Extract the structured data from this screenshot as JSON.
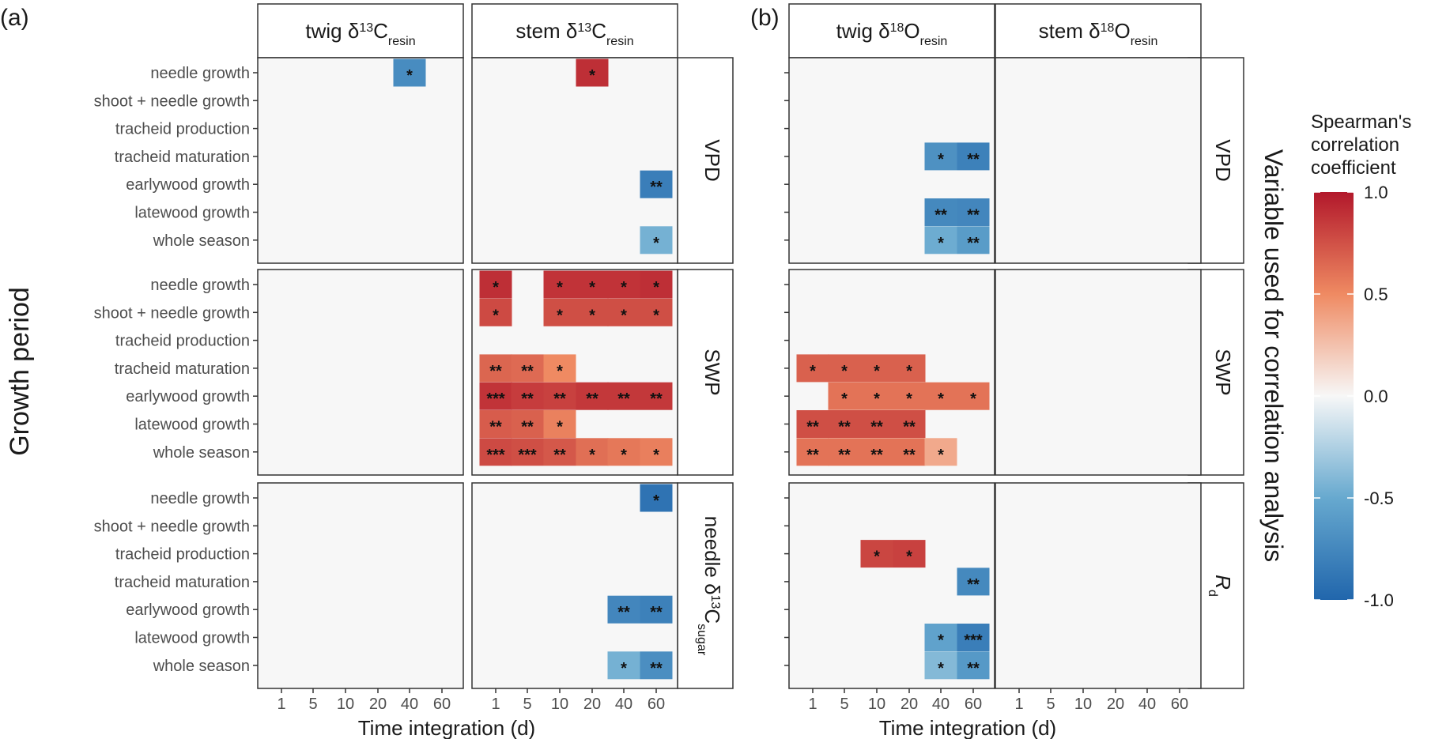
{
  "panel_labels": [
    "(a)",
    "(b)"
  ],
  "strips": {
    "col": [
      {
        "base": "twig δ",
        "sup": "13",
        "main": "C",
        "sub": "resin"
      },
      {
        "base": "stem δ",
        "sup": "13",
        "main": "C",
        "sub": "resin"
      },
      {
        "base": "twig δ",
        "sup": "18",
        "main": "O",
        "sub": "resin"
      },
      {
        "base": "stem δ",
        "sup": "18",
        "main": "O",
        "sub": "resin"
      }
    ],
    "row_a": [
      {
        "base": "VPD"
      },
      {
        "base": "SWP"
      },
      {
        "base": "needle δ",
        "sup": "13",
        "main": "C",
        "sub": "sugar"
      }
    ],
    "row_b": [
      {
        "base": "VPD"
      },
      {
        "base": "SWP"
      },
      {
        "base": "R",
        "sub": "d",
        "italic": true
      }
    ]
  },
  "right_title": "Variable used for correlation analysis",
  "legend": {
    "title": [
      "Spearman's",
      "correlation",
      "coefficient"
    ],
    "ticks": [
      "1.0",
      "0.5",
      "0.0",
      "-0.5",
      "-1.0"
    ],
    "colors": [
      "#b2182b",
      "#ef8a62",
      "#f7f7f7",
      "#67a9cf",
      "#2166ac"
    ]
  },
  "chart_data": {
    "type": "heatmap",
    "ylabel": "Growth period",
    "xlabel": "Time integration (d)",
    "x_categories": [
      "1",
      "5",
      "10",
      "20",
      "40",
      "60"
    ],
    "y_categories": [
      "needle growth",
      "shoot + needle growth",
      "tracheid production",
      "tracheid maturation",
      "earlywood growth",
      "latewood growth",
      "whole season"
    ],
    "value_range": [
      -1.0,
      1.0
    ],
    "panels": [
      {
        "panel": "(a)",
        "column": "twig δ13Cresin",
        "row": "VPD",
        "cells": [
          {
            "y": "needle growth",
            "x": "40",
            "value": -0.72,
            "sig": "*"
          }
        ]
      },
      {
        "panel": "(a)",
        "column": "stem δ13Cresin",
        "row": "VPD",
        "cells": [
          {
            "y": "needle growth",
            "x": "20",
            "value": 0.9,
            "sig": "*"
          },
          {
            "y": "earlywood growth",
            "x": "60",
            "value": -0.82,
            "sig": "**"
          },
          {
            "y": "whole season",
            "x": "60",
            "value": -0.45,
            "sig": "*"
          }
        ]
      },
      {
        "panel": "(a)",
        "column": "twig δ13Cresin",
        "row": "SWP",
        "cells": []
      },
      {
        "panel": "(a)",
        "column": "stem δ13Cresin",
        "row": "SWP",
        "cells": [
          {
            "y": "needle growth",
            "x": "1",
            "value": 0.9,
            "sig": "*"
          },
          {
            "y": "needle growth",
            "x": "10",
            "value": 0.88,
            "sig": "*"
          },
          {
            "y": "needle growth",
            "x": "20",
            "value": 0.88,
            "sig": "*"
          },
          {
            "y": "needle growth",
            "x": "40",
            "value": 0.88,
            "sig": "*"
          },
          {
            "y": "needle growth",
            "x": "60",
            "value": 0.9,
            "sig": "*"
          },
          {
            "y": "shoot + needle growth",
            "x": "1",
            "value": 0.78,
            "sig": "*"
          },
          {
            "y": "shoot + needle growth",
            "x": "10",
            "value": 0.76,
            "sig": "*"
          },
          {
            "y": "shoot + needle growth",
            "x": "20",
            "value": 0.76,
            "sig": "*"
          },
          {
            "y": "shoot + needle growth",
            "x": "40",
            "value": 0.76,
            "sig": "*"
          },
          {
            "y": "shoot + needle growth",
            "x": "60",
            "value": 0.76,
            "sig": "*"
          },
          {
            "y": "tracheid maturation",
            "x": "1",
            "value": 0.66,
            "sig": "**"
          },
          {
            "y": "tracheid maturation",
            "x": "5",
            "value": 0.64,
            "sig": "**"
          },
          {
            "y": "tracheid maturation",
            "x": "10",
            "value": 0.5,
            "sig": "*"
          },
          {
            "y": "earlywood growth",
            "x": "1",
            "value": 0.88,
            "sig": "***"
          },
          {
            "y": "earlywood growth",
            "x": "5",
            "value": 0.84,
            "sig": "**"
          },
          {
            "y": "earlywood growth",
            "x": "10",
            "value": 0.82,
            "sig": "**"
          },
          {
            "y": "earlywood growth",
            "x": "20",
            "value": 0.86,
            "sig": "**"
          },
          {
            "y": "earlywood growth",
            "x": "40",
            "value": 0.86,
            "sig": "**"
          },
          {
            "y": "earlywood growth",
            "x": "60",
            "value": 0.86,
            "sig": "**"
          },
          {
            "y": "latewood growth",
            "x": "1",
            "value": 0.7,
            "sig": "**"
          },
          {
            "y": "latewood growth",
            "x": "5",
            "value": 0.68,
            "sig": "**"
          },
          {
            "y": "latewood growth",
            "x": "10",
            "value": 0.54,
            "sig": "*"
          },
          {
            "y": "whole season",
            "x": "1",
            "value": 0.78,
            "sig": "***"
          },
          {
            "y": "whole season",
            "x": "5",
            "value": 0.76,
            "sig": "***"
          },
          {
            "y": "whole season",
            "x": "10",
            "value": 0.72,
            "sig": "**"
          },
          {
            "y": "whole season",
            "x": "20",
            "value": 0.62,
            "sig": "*"
          },
          {
            "y": "whole season",
            "x": "40",
            "value": 0.58,
            "sig": "*"
          },
          {
            "y": "whole season",
            "x": "60",
            "value": 0.55,
            "sig": "*"
          }
        ]
      },
      {
        "panel": "(a)",
        "column": "twig δ13Cresin",
        "row": "needle δ13Csugar",
        "cells": []
      },
      {
        "panel": "(a)",
        "column": "stem δ13Cresin",
        "row": "needle δ13Csugar",
        "cells": [
          {
            "y": "needle growth",
            "x": "60",
            "value": -0.9,
            "sig": "*"
          },
          {
            "y": "earlywood growth",
            "x": "40",
            "value": -0.76,
            "sig": "**"
          },
          {
            "y": "earlywood growth",
            "x": "60",
            "value": -0.8,
            "sig": "**"
          },
          {
            "y": "whole season",
            "x": "40",
            "value": -0.45,
            "sig": "*"
          },
          {
            "y": "whole season",
            "x": "60",
            "value": -0.7,
            "sig": "**"
          }
        ]
      },
      {
        "panel": "(b)",
        "column": "twig δ18Oresin",
        "row": "VPD",
        "cells": [
          {
            "y": "tracheid maturation",
            "x": "40",
            "value": -0.68,
            "sig": "*"
          },
          {
            "y": "tracheid maturation",
            "x": "60",
            "value": -0.8,
            "sig": "**"
          },
          {
            "y": "latewood growth",
            "x": "40",
            "value": -0.74,
            "sig": "**"
          },
          {
            "y": "latewood growth",
            "x": "60",
            "value": -0.76,
            "sig": "**"
          },
          {
            "y": "whole season",
            "x": "40",
            "value": -0.48,
            "sig": "*"
          },
          {
            "y": "whole season",
            "x": "60",
            "value": -0.6,
            "sig": "**"
          }
        ]
      },
      {
        "panel": "(b)",
        "column": "stem δ18Oresin",
        "row": "VPD",
        "cells": []
      },
      {
        "panel": "(b)",
        "column": "twig δ18Oresin",
        "row": "SWP",
        "cells": [
          {
            "y": "tracheid maturation",
            "x": "1",
            "value": 0.68,
            "sig": "*"
          },
          {
            "y": "tracheid maturation",
            "x": "5",
            "value": 0.68,
            "sig": "*"
          },
          {
            "y": "tracheid maturation",
            "x": "10",
            "value": 0.68,
            "sig": "*"
          },
          {
            "y": "tracheid maturation",
            "x": "20",
            "value": 0.68,
            "sig": "*"
          },
          {
            "y": "earlywood growth",
            "x": "5",
            "value": 0.6,
            "sig": "*"
          },
          {
            "y": "earlywood growth",
            "x": "10",
            "value": 0.6,
            "sig": "*"
          },
          {
            "y": "earlywood growth",
            "x": "20",
            "value": 0.6,
            "sig": "*"
          },
          {
            "y": "earlywood growth",
            "x": "40",
            "value": 0.6,
            "sig": "*"
          },
          {
            "y": "earlywood growth",
            "x": "60",
            "value": 0.6,
            "sig": "*"
          },
          {
            "y": "latewood growth",
            "x": "1",
            "value": 0.76,
            "sig": "**"
          },
          {
            "y": "latewood growth",
            "x": "5",
            "value": 0.76,
            "sig": "**"
          },
          {
            "y": "latewood growth",
            "x": "10",
            "value": 0.76,
            "sig": "**"
          },
          {
            "y": "latewood growth",
            "x": "20",
            "value": 0.76,
            "sig": "**"
          },
          {
            "y": "whole season",
            "x": "1",
            "value": 0.6,
            "sig": "**"
          },
          {
            "y": "whole season",
            "x": "5",
            "value": 0.6,
            "sig": "**"
          },
          {
            "y": "whole season",
            "x": "10",
            "value": 0.6,
            "sig": "**"
          },
          {
            "y": "whole season",
            "x": "20",
            "value": 0.6,
            "sig": "**"
          },
          {
            "y": "whole season",
            "x": "40",
            "value": 0.36,
            "sig": "*"
          }
        ]
      },
      {
        "panel": "(b)",
        "column": "stem δ18Oresin",
        "row": "SWP",
        "cells": []
      },
      {
        "panel": "(b)",
        "column": "twig δ18Oresin",
        "row": "Rd",
        "cells": [
          {
            "y": "tracheid production",
            "x": "10",
            "value": 0.8,
            "sig": "*"
          },
          {
            "y": "tracheid production",
            "x": "20",
            "value": 0.82,
            "sig": "*"
          },
          {
            "y": "tracheid maturation",
            "x": "60",
            "value": -0.74,
            "sig": "**"
          },
          {
            "y": "latewood growth",
            "x": "40",
            "value": -0.55,
            "sig": "*"
          },
          {
            "y": "latewood growth",
            "x": "60",
            "value": -0.82,
            "sig": "***"
          },
          {
            "y": "whole season",
            "x": "40",
            "value": -0.4,
            "sig": "*"
          },
          {
            "y": "whole season",
            "x": "60",
            "value": -0.62,
            "sig": "**"
          }
        ]
      },
      {
        "panel": "(b)",
        "column": "stem δ18Oresin",
        "row": "Rd",
        "cells": []
      }
    ]
  }
}
